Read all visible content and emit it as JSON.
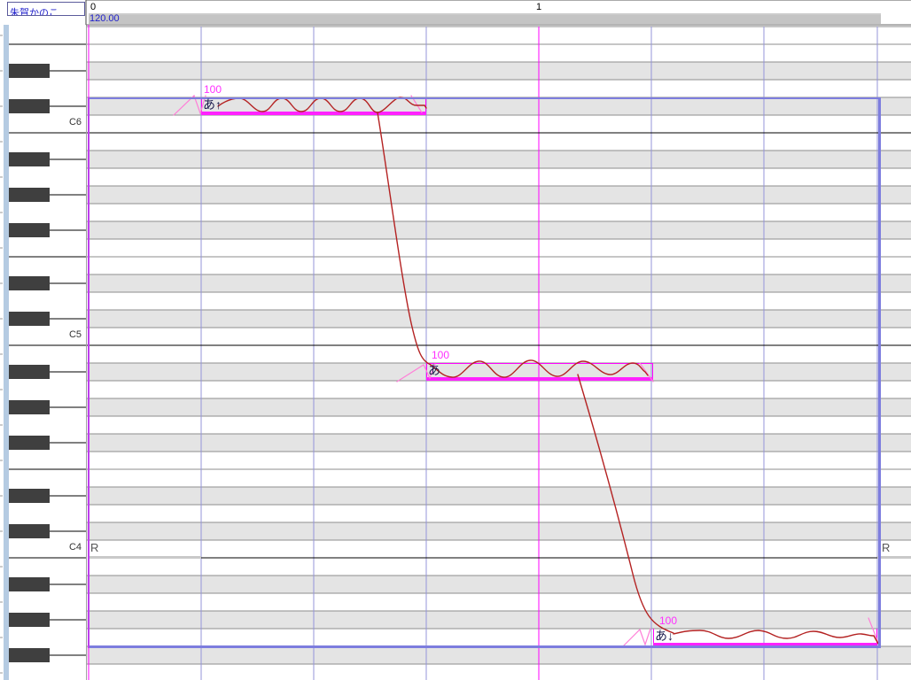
{
  "track": {
    "name": "朱賀かのこ"
  },
  "ruler": {
    "measure_labels": [
      "0",
      "1"
    ],
    "tempo": "120.00"
  },
  "keyboard": {
    "labels": [
      "C6",
      "C5",
      "C4"
    ]
  },
  "notes": [
    {
      "lyric": "あ↑",
      "intensity": "100",
      "pitch": "C#6"
    },
    {
      "lyric": "あ",
      "intensity": "100",
      "pitch": "A#4"
    },
    {
      "lyric": "あ↓",
      "intensity": "100",
      "pitch": "G3"
    }
  ],
  "rests": [
    {
      "label": "R"
    },
    {
      "label": "R"
    }
  ],
  "colors": {
    "note": "#ff00ff",
    "pitch_curve": "#b42222",
    "beat_line": "#9494da",
    "measure_line": "#ff00ff",
    "playhead": "#ff00ff",
    "selection": "#7d7dde",
    "envelope": "#ff7fd8",
    "rest_bar": "#c9c9c9",
    "tempo_text": "#2222cc"
  }
}
